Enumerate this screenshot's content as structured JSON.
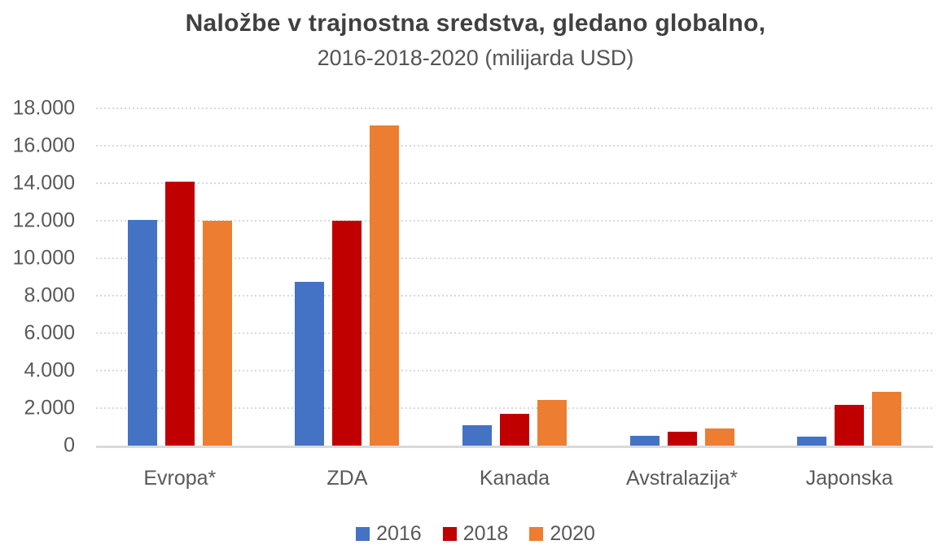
{
  "chart_data": {
    "type": "bar",
    "title": "Naložbe v trajnostna sredstva, gledano globalno,",
    "subtitle": "2016-2018-2020 (milijarda USD)",
    "categories": [
      "Evropa*",
      "ZDA",
      "Kanada",
      "Avstralazija*",
      "Japonska"
    ],
    "series": [
      {
        "name": "2016",
        "color": "#4472C4",
        "values": [
          12040,
          8723,
          1086,
          516,
          474
        ]
      },
      {
        "name": "2018",
        "color": "#C00000",
        "values": [
          14075,
          11995,
          1699,
          734,
          2180
        ]
      },
      {
        "name": "2020",
        "color": "#ED7D31",
        "values": [
          12017,
          17081,
          2423,
          906,
          2874
        ]
      }
    ],
    "xlabel": "",
    "ylabel": "",
    "ylim": [
      0,
      18000
    ],
    "y_ticks": [
      0,
      2000,
      4000,
      6000,
      8000,
      10000,
      12000,
      14000,
      16000,
      18000
    ],
    "y_tick_labels": [
      "0",
      "2.000",
      "4.000",
      "6.000",
      "8.000",
      "10.000",
      "12.000",
      "14.000",
      "16.000",
      "18.000"
    ],
    "grid": "horizontal-dotted",
    "legend_position": "bottom",
    "legend": [
      "2016",
      "2018",
      "2020"
    ]
  },
  "style": {
    "gridline_color": "#D9D9D9",
    "axis_line_color": "#D9D9D9",
    "title_color": "#404040",
    "subtitle_color": "#555555",
    "text_color": "#595959",
    "background": "#FFFFFF"
  }
}
